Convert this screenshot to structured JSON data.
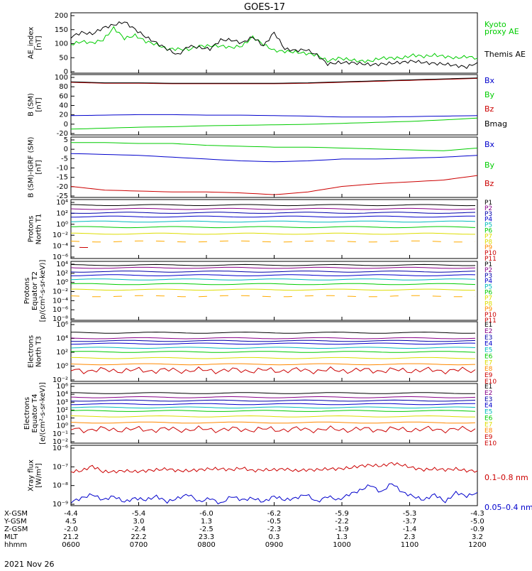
{
  "title": "GOES-17",
  "date_label": "2021 Nov 26",
  "colors": {
    "black": "#000000",
    "red": "#cc0000",
    "green": "#00cc00",
    "blue": "#0000cc",
    "dark_red": "#880000",
    "cyan": "#00bbbb",
    "yellow": "#dddd00",
    "orange": "#ff8800",
    "purple": "#880088",
    "navy": "#0000aa",
    "magenta": "#cc00cc"
  },
  "chart_data": [
    {
      "type": "line",
      "ylabel": [
        "AE_index",
        "[nT]"
      ],
      "yticks": [
        "200",
        "150",
        "100",
        "50",
        "0"
      ],
      "ylim": [
        0,
        200
      ],
      "legend": [
        {
          "label": "Kyoto",
          "color": "#00cc00"
        },
        {
          "label": "proxy AE",
          "color": "#00cc00"
        },
        {
          "label": "Themis AE",
          "color": "#000000"
        }
      ],
      "series": [
        {
          "name": "Kyoto",
          "color": "#00cc00",
          "values": [
            95,
            105,
            100,
            110,
            150,
            115,
            125,
            105,
            95,
            80,
            80,
            78,
            90,
            90,
            90,
            85,
            90,
            120,
            95,
            75,
            72,
            70,
            65,
            60,
            40,
            50,
            45,
            40,
            40,
            50,
            50,
            50,
            60,
            55,
            60,
            55,
            50,
            55,
            50
          ]
        },
        {
          "name": "Themis AE",
          "color": "#000000",
          "values": [
            120,
            135,
            130,
            150,
            160,
            170,
            145,
            120,
            100,
            80,
            60,
            90,
            85,
            80,
            110,
            110,
            100,
            120,
            90,
            135,
            80,
            75,
            78,
            60,
            30,
            35,
            35,
            32,
            28,
            30,
            33,
            36,
            40,
            35,
            32,
            30,
            25,
            20,
            35
          ]
        }
      ]
    },
    {
      "type": "line",
      "ylabel": [
        "B (SM)",
        "[nT]"
      ],
      "yticks": [
        "100",
        "80",
        "60",
        "40",
        "20",
        "0",
        "-20"
      ],
      "ylim": [
        -25,
        100
      ],
      "legend": [
        {
          "label": "Bx",
          "color": "#0000cc"
        },
        {
          "label": "By",
          "color": "#00cc00"
        },
        {
          "label": "Bz",
          "color": "#cc0000"
        },
        {
          "label": "Bmag",
          "color": "#000000"
        }
      ],
      "series": [
        {
          "name": "Bx",
          "color": "#0000cc",
          "values": [
            15,
            16,
            17,
            17,
            16,
            16,
            15,
            14,
            12,
            12,
            13,
            14,
            15
          ]
        },
        {
          "name": "By",
          "color": "#00cc00",
          "values": [
            -13,
            -11,
            -9,
            -8,
            -6,
            -5,
            -4,
            -3,
            -1,
            1,
            3,
            6,
            10
          ]
        },
        {
          "name": "Bz",
          "color": "#cc0000",
          "values": [
            84,
            82,
            82,
            81,
            81,
            81,
            81,
            82,
            84,
            86,
            88,
            90,
            92
          ]
        },
        {
          "name": "Bmag",
          "color": "#000000",
          "values": [
            85,
            83,
            83,
            82,
            82,
            82,
            82,
            83,
            85,
            87,
            89,
            91,
            93
          ]
        }
      ]
    },
    {
      "type": "line",
      "ylabel": [
        "B (SM)-IGRF (SM)",
        "[nT]"
      ],
      "yticks": [
        "5",
        "0",
        "-5",
        "-10",
        "-15",
        "-20",
        "-25"
      ],
      "ylim": [
        -27,
        6
      ],
      "legend": [
        {
          "label": "Bx",
          "color": "#0000cc"
        },
        {
          "label": "By",
          "color": "#00cc00"
        },
        {
          "label": "Bz",
          "color": "#cc0000"
        }
      ],
      "series": [
        {
          "name": "Bx",
          "color": "#0000cc",
          "values": [
            -3,
            -3.5,
            -4,
            -5,
            -6,
            -7,
            -7.5,
            -7,
            -6,
            -6,
            -5.5,
            -5,
            -4
          ]
        },
        {
          "name": "By",
          "color": "#00cc00",
          "values": [
            3,
            3,
            2.5,
            2.5,
            1.5,
            1,
            0.5,
            0.5,
            0,
            -0.5,
            -1,
            -1.5,
            0
          ]
        },
        {
          "name": "Bz",
          "color": "#cc0000",
          "values": [
            -21,
            -23,
            -23.5,
            -24,
            -24,
            -24.5,
            -25.5,
            -24,
            -21,
            -19.5,
            -18.5,
            -17.5,
            -15
          ]
        }
      ]
    },
    {
      "type": "line",
      "ylabel": [
        "Protons",
        "North T1"
      ],
      "yticks": [
        "10⁴",
        "10²",
        "10⁰",
        "10⁻²",
        "10⁻⁴",
        "10⁻⁶"
      ],
      "ylim": [
        -6.5,
        4.2
      ],
      "legend": [
        {
          "label": "P1",
          "color": "#000000"
        },
        {
          "label": "P2",
          "color": "#880088"
        },
        {
          "label": "P3",
          "color": "#0000aa"
        },
        {
          "label": "P4",
          "color": "#0000cc"
        },
        {
          "label": "P5",
          "color": "#00bbbb"
        },
        {
          "label": "P6",
          "color": "#00cc00"
        },
        {
          "label": "P7",
          "color": "#dddd00"
        },
        {
          "label": "P8",
          "color": "#dddd00"
        },
        {
          "label": "P9",
          "color": "#ff8800"
        },
        {
          "label": "P10",
          "color": "#cc0000"
        },
        {
          "label": "P11",
          "color": "#cc0000"
        }
      ],
      "series": [
        {
          "name": "P1",
          "color": "#000000",
          "level": 3.2
        },
        {
          "name": "P2",
          "color": "#880088",
          "level": 2.5
        },
        {
          "name": "P3",
          "color": "#0000aa",
          "level": 1.8
        },
        {
          "name": "P4",
          "color": "#0000cc",
          "level": 1.1
        },
        {
          "name": "P5",
          "color": "#00bbbb",
          "level": 0.2
        },
        {
          "name": "P6",
          "color": "#00cc00",
          "level": -0.8
        },
        {
          "name": "P7",
          "color": "#dddd00",
          "level": -2.0
        },
        {
          "name": "P8",
          "color": "#ffaa00",
          "level": -3.4,
          "dashed": true
        },
        {
          "name": "P10",
          "color": "#cc0000",
          "level": -4.4,
          "short": true
        }
      ]
    },
    {
      "type": "line",
      "ylabel": [
        "Protons",
        "Equator T2",
        "[p/(cm²-s-sr-keV)]"
      ],
      "yticks": [
        "10⁴",
        "10²",
        "10⁰",
        "10⁻²",
        "10⁻⁴",
        "10⁻⁶",
        "10⁻⁸"
      ],
      "ylim": [
        -8.5,
        4.2
      ],
      "legend": [
        {
          "label": "P1",
          "color": "#000000"
        },
        {
          "label": "P2",
          "color": "#880088"
        },
        {
          "label": "P3",
          "color": "#0000aa"
        },
        {
          "label": "P4",
          "color": "#0000cc"
        },
        {
          "label": "P5",
          "color": "#00bbbb"
        },
        {
          "label": "P6",
          "color": "#00cc00"
        },
        {
          "label": "P7",
          "color": "#dddd00"
        },
        {
          "label": "P8",
          "color": "#dddd00"
        },
        {
          "label": "P9",
          "color": "#ff8800"
        },
        {
          "label": "P10",
          "color": "#cc0000"
        },
        {
          "label": "P11",
          "color": "#cc0000"
        }
      ],
      "series": [
        {
          "name": "P1",
          "color": "#000000",
          "level": 3.4
        },
        {
          "name": "P2",
          "color": "#880088",
          "level": 2.8
        },
        {
          "name": "P3",
          "color": "#0000aa",
          "level": 2.0
        },
        {
          "name": "P4",
          "color": "#0000cc",
          "level": 1.2
        },
        {
          "name": "P5",
          "color": "#00bbbb",
          "level": 0.3
        },
        {
          "name": "P6",
          "color": "#00cc00",
          "level": -0.7
        },
        {
          "name": "P7",
          "color": "#dddd00",
          "level": -1.9
        },
        {
          "name": "P8",
          "color": "#ffaa00",
          "level": -3.3,
          "dashed": true
        }
      ]
    },
    {
      "type": "line",
      "ylabel": [
        "Electrons",
        "North T3"
      ],
      "yticks": [
        "10⁶",
        "10⁴",
        "10²",
        "10⁰",
        "10⁻²"
      ],
      "ylim": [
        -2.5,
        6.2
      ],
      "legend": [
        {
          "label": "E1",
          "color": "#000000"
        },
        {
          "label": "E2",
          "color": "#880088"
        },
        {
          "label": "E3",
          "color": "#0000aa"
        },
        {
          "label": "E4",
          "color": "#0000cc"
        },
        {
          "label": "E5",
          "color": "#00bbbb"
        },
        {
          "label": "E6",
          "color": "#00cc00"
        },
        {
          "label": "E7",
          "color": "#dddd00"
        },
        {
          "label": "E8",
          "color": "#ff8800"
        },
        {
          "label": "E9",
          "color": "#cc0000"
        },
        {
          "label": "E10",
          "color": "#cc0000"
        }
      ],
      "series": [
        {
          "name": "E1",
          "color": "#000000",
          "level": 4.6
        },
        {
          "name": "E2",
          "color": "#880088",
          "level": 3.8
        },
        {
          "name": "E3",
          "color": "#0000aa",
          "level": 3.4
        },
        {
          "name": "E4",
          "color": "#0000cc",
          "level": 3.0
        },
        {
          "name": "E5",
          "color": "#00bbbb",
          "level": 2.4
        },
        {
          "name": "E6",
          "color": "#00cc00",
          "level": 1.8
        },
        {
          "name": "E7",
          "color": "#dddd00",
          "level": 0.9
        },
        {
          "name": "E8",
          "color": "#ff8800",
          "level": 0.0
        },
        {
          "name": "E9",
          "color": "#cc0000",
          "level": -0.9,
          "noisy": true
        }
      ]
    },
    {
      "type": "line",
      "ylabel": [
        "Electrons",
        "Equator T4",
        "[e/(cm²-s-sr-keV)]"
      ],
      "yticks": [
        "10⁶",
        "10⁴",
        "10³",
        "10²",
        "10¹",
        "10⁰",
        "10⁻¹",
        "10⁻²"
      ],
      "ylim": [
        -2.5,
        6.2
      ],
      "legend": [
        {
          "label": "E1",
          "color": "#000000"
        },
        {
          "label": "E2",
          "color": "#880088"
        },
        {
          "label": "E3",
          "color": "#0000aa"
        },
        {
          "label": "E4",
          "color": "#0000cc"
        },
        {
          "label": "E5",
          "color": "#00bbbb"
        },
        {
          "label": "E6",
          "color": "#00cc00"
        },
        {
          "label": "E7",
          "color": "#dddd00"
        },
        {
          "label": "E8",
          "color": "#ff8800"
        },
        {
          "label": "E9",
          "color": "#cc0000"
        },
        {
          "label": "E10",
          "color": "#cc0000"
        }
      ],
      "series": [
        {
          "name": "E1",
          "color": "#000000",
          "level": 4.8
        },
        {
          "name": "E2",
          "color": "#880088",
          "level": 4.2
        },
        {
          "name": "E3",
          "color": "#0000aa",
          "level": 3.7
        },
        {
          "name": "E4",
          "color": "#0000cc",
          "level": 3.2
        },
        {
          "name": "E5",
          "color": "#00bbbb",
          "level": 2.7
        },
        {
          "name": "E6",
          "color": "#00cc00",
          "level": 2.2
        },
        {
          "name": "E7",
          "color": "#dddd00",
          "level": 1.4
        },
        {
          "name": "E8",
          "color": "#ff8800",
          "level": 0.5
        },
        {
          "name": "E9",
          "color": "#cc0000",
          "level": -0.5,
          "noisy": true
        }
      ]
    },
    {
      "type": "line",
      "ylabel": [
        "Xray flux",
        "[W/m²]"
      ],
      "yticks": [
        "10⁻⁶",
        "10⁻⁷",
        "10⁻⁸",
        "10⁻⁹"
      ],
      "ylim": [
        -9.1,
        -5.9
      ],
      "legend": [
        {
          "label": "0.1–0.8 nm",
          "color": "#cc0000"
        },
        {
          "label": "0.05–0.4 nm",
          "color": "#0000cc"
        }
      ],
      "series": [
        {
          "name": "0.1–0.8 nm",
          "color": "#cc0000",
          "values": [
            -7.3,
            -7.25,
            -7.0,
            -7.3,
            -7.3,
            -7.25,
            -7.3,
            -7.25,
            -7.2,
            -7.15,
            -7.25,
            -7.25,
            -7.2,
            -7.15,
            -7.15,
            -7.2,
            -7.1,
            -7.25,
            -7.2,
            -7.2,
            -7.15,
            -7.25,
            -7.2,
            -7.2,
            -7.15,
            -7.15,
            -7.1,
            -7.0,
            -6.95,
            -7.0,
            -6.85,
            -6.95,
            -7.1,
            -7.2,
            -7.15,
            -7.2,
            -7.15,
            -7.25,
            -7.25
          ]
        },
        {
          "name": "0.05–0.4 nm",
          "color": "#0000cc",
          "values": [
            -8.9,
            -8.7,
            -8.5,
            -8.8,
            -8.6,
            -8.9,
            -8.7,
            -8.8,
            -8.6,
            -8.9,
            -8.7,
            -8.5,
            -8.9,
            -8.7,
            -9.0,
            -8.6,
            -8.8,
            -8.7,
            -8.9,
            -8.6,
            -8.8,
            -8.7,
            -8.5,
            -8.9,
            -8.6,
            -8.8,
            -8.5,
            -8.3,
            -8.0,
            -8.4,
            -7.9,
            -8.4,
            -8.6,
            -8.8,
            -8.5,
            -8.9,
            -8.4,
            -8.6,
            -8.4
          ]
        }
      ]
    }
  ],
  "x_axis": {
    "row_labels": [
      "X-GSM",
      "Y-GSM",
      "Z-GSM",
      "MLT",
      "hhmm"
    ],
    "columns": [
      {
        "values": [
          "-4.4",
          "4.5",
          "-2.0",
          "21.2",
          "0600"
        ]
      },
      {
        "values": [
          "-5.4",
          "3.0",
          "-2.4",
          "22.2",
          "0700"
        ]
      },
      {
        "values": [
          "-6.0",
          "1.3",
          "-2.5",
          "23.3",
          "0800"
        ]
      },
      {
        "values": [
          "-6.2",
          "-0.5",
          "-2.3",
          "0.3",
          "0900"
        ]
      },
      {
        "values": [
          "-5.9",
          "-2.2",
          "-1.9",
          "1.3",
          "1000"
        ]
      },
      {
        "values": [
          "-5.3",
          "-3.7",
          "-1.4",
          "2.3",
          "1100"
        ]
      },
      {
        "values": [
          "-4.3",
          "-5.0",
          "-0.9",
          "3.2",
          "1200"
        ]
      }
    ]
  }
}
